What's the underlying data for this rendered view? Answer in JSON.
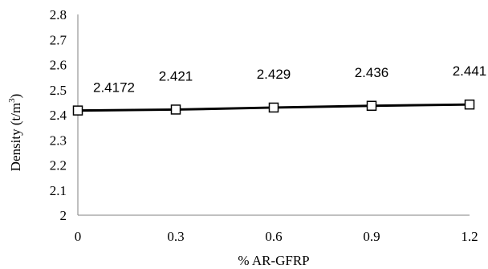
{
  "chart_data": {
    "type": "line",
    "title": "",
    "xlabel": "% AR-GFRP",
    "ylabel": {
      "main": "Density (t/m",
      "sup": "3",
      "tail": ")"
    },
    "x": [
      0,
      0.3,
      0.6,
      0.9,
      1.2
    ],
    "x_tick_labels": [
      "0",
      "0.3",
      "0.6",
      "0.9",
      "1.2"
    ],
    "y_ticks": [
      2,
      2.1,
      2.2,
      2.3,
      2.4,
      2.5,
      2.6,
      2.7,
      2.8
    ],
    "y_tick_labels": [
      "2",
      "2.1",
      "2.2",
      "2.3",
      "2.4",
      "2.5",
      "2.6",
      "2.7",
      "2.8"
    ],
    "ylim": [
      2,
      2.8
    ],
    "xlim": [
      0,
      1.2
    ],
    "grid": false,
    "legend": "none",
    "series": [
      {
        "values": [
          2.4172,
          2.421,
          2.429,
          2.436,
          2.441
        ],
        "data_labels": [
          "2.4172",
          "2.421",
          "2.429",
          "2.436",
          "2.441"
        ],
        "marker": "hollow-square",
        "color": "#000000"
      }
    ]
  }
}
